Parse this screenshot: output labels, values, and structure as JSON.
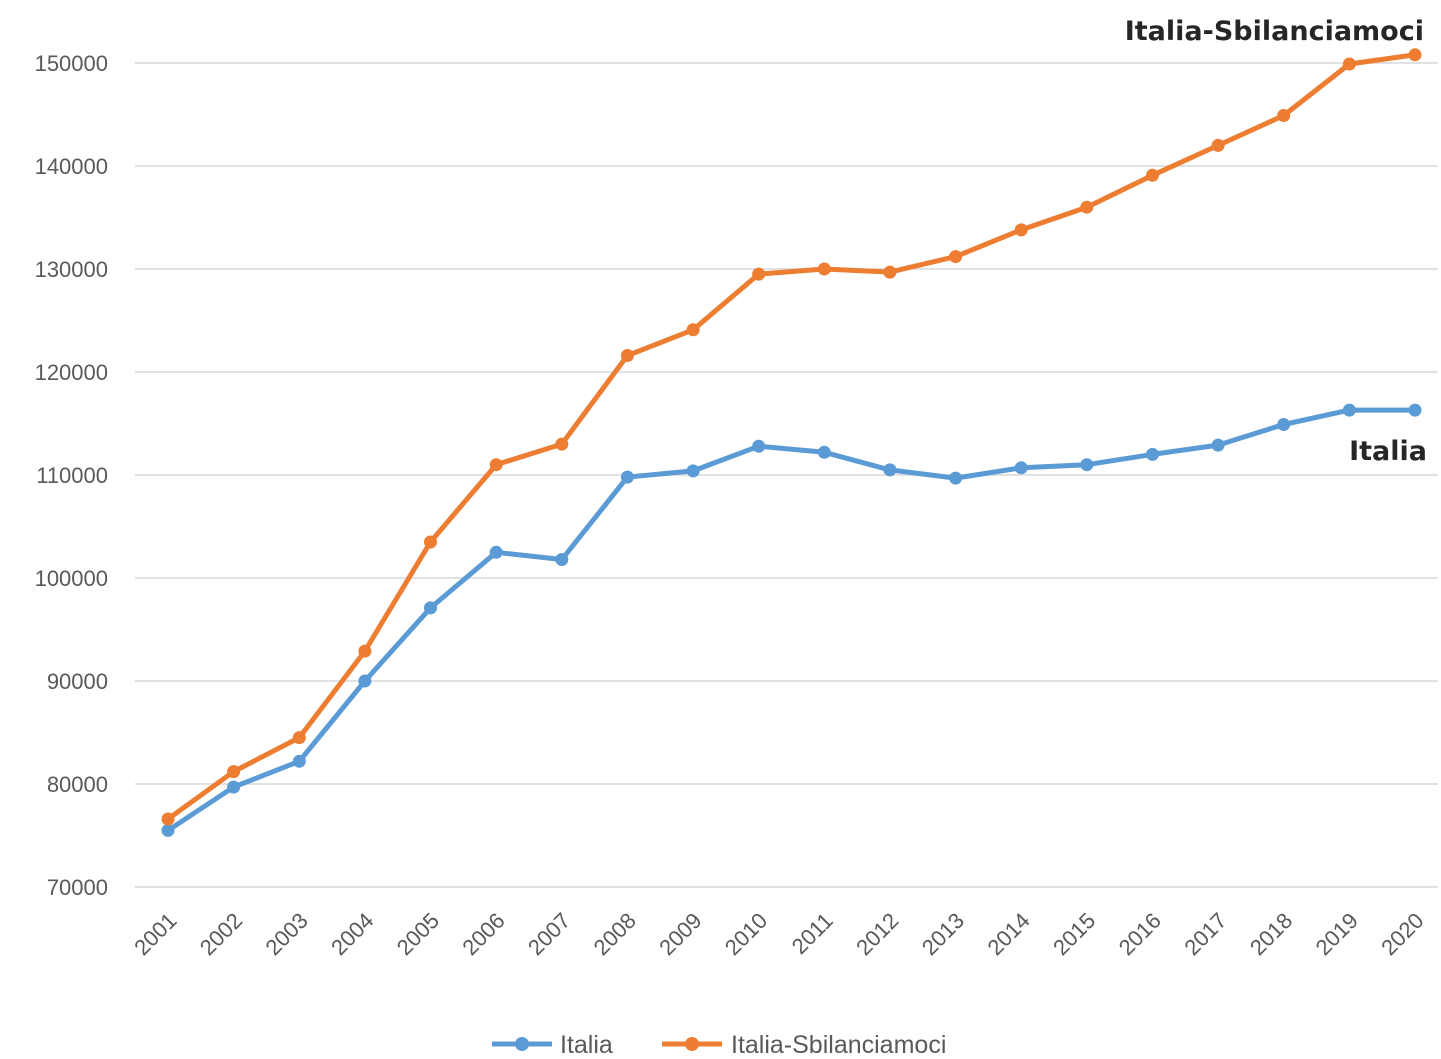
{
  "chart_data": {
    "type": "line",
    "title": "",
    "xlabel": "",
    "ylabel": "",
    "categories": [
      "2001",
      "2002",
      "2003",
      "2004",
      "2005",
      "2006",
      "2007",
      "2008",
      "2009",
      "2010",
      "2011",
      "2012",
      "2013",
      "2014",
      "2015",
      "2016",
      "2017",
      "2018",
      "2019",
      "2020"
    ],
    "yticks": [
      "70000",
      "80000",
      "90000",
      "100000",
      "110000",
      "120000",
      "130000",
      "140000",
      "150000"
    ],
    "ylim": [
      70000,
      150000
    ],
    "grid": true,
    "legend_position": "bottom",
    "series": [
      {
        "name": "Italia",
        "color": "#5B9BD5",
        "end_label": "Italia",
        "values": [
          75500,
          79700,
          82200,
          90000,
          97100,
          102500,
          101800,
          109800,
          110400,
          112800,
          112200,
          110500,
          109700,
          110700,
          111000,
          112000,
          112900,
          114900,
          116300,
          116300
        ]
      },
      {
        "name": "Italia-Sbilanciamoci",
        "color": "#ED7D31",
        "end_label": "Italia-Sbilanciamoci",
        "values": [
          76600,
          81200,
          84500,
          92900,
          103500,
          111000,
          113000,
          121600,
          124100,
          129500,
          130000,
          129700,
          131200,
          133800,
          136000,
          139100,
          142000,
          144900,
          149900,
          150800
        ]
      }
    ]
  }
}
